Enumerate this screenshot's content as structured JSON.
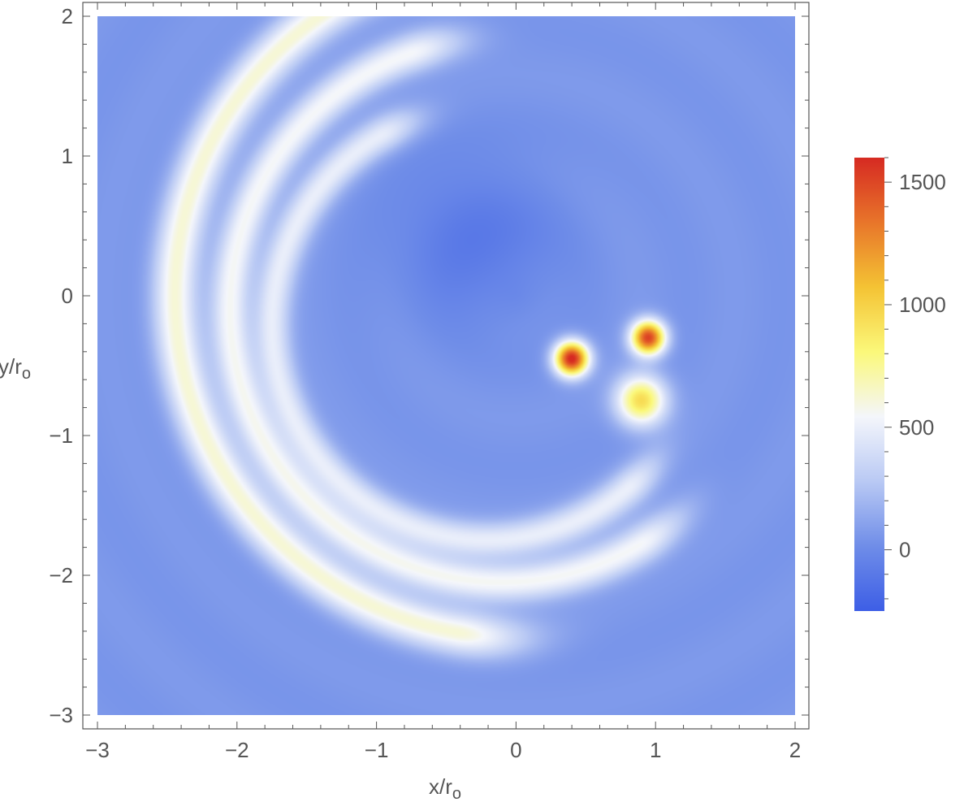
{
  "chart_data": {
    "type": "heatmap",
    "title": "",
    "xlabel": "x/r",
    "xlabel_sub": "o",
    "ylabel": "y/r",
    "ylabel_sub": "o",
    "xlim": [
      -3,
      2
    ],
    "ylim": [
      -3,
      2
    ],
    "x_ticks": [
      -3,
      -2,
      -1,
      0,
      1,
      2
    ],
    "y_ticks": [
      -3,
      -2,
      -1,
      0,
      1,
      2
    ],
    "x_tick_labels": [
      "−3",
      "−2",
      "−1",
      "0",
      "1",
      "2"
    ],
    "y_tick_labels": [
      "−3",
      "−2",
      "−1",
      "0",
      "1",
      "2"
    ],
    "colorbar": {
      "min": -250,
      "max": 1600,
      "ticks": [
        0,
        500,
        1000,
        1500
      ],
      "tick_labels": [
        "0",
        "500",
        "1000",
        "1500"
      ],
      "colors": [
        "#3d5ee6",
        "#6f8de8",
        "#b9c9f4",
        "#f4f6fb",
        "#fbf87a",
        "#f4c334",
        "#e8752a",
        "#d62a22"
      ]
    },
    "background_level": 60,
    "features": [
      {
        "name": "outer-arc",
        "center": [
          0,
          0
        ],
        "radius": 2.45,
        "from_deg": 100,
        "to_deg": 260,
        "peak": 560,
        "width": 0.16
      },
      {
        "name": "middle-arc",
        "center": [
          -0.1,
          -0.1
        ],
        "radius": 1.95,
        "from_deg": 110,
        "to_deg": 300,
        "peak": 500,
        "width": 0.14
      },
      {
        "name": "inner-arc",
        "center": [
          -0.2,
          -0.2
        ],
        "radius": 1.55,
        "from_deg": 120,
        "to_deg": 310,
        "peak": 430,
        "width": 0.13
      },
      {
        "name": "hot-spot-left",
        "x": 0.4,
        "y": -0.45,
        "peak": 1580,
        "width": 0.12
      },
      {
        "name": "hot-spot-right",
        "x": 0.95,
        "y": -0.3,
        "peak": 1450,
        "width": 0.12
      },
      {
        "name": "hot-tail",
        "x": 0.9,
        "y": -0.75,
        "peak": 900,
        "width": 0.18
      },
      {
        "name": "dark-core",
        "x": -0.3,
        "y": 0.4,
        "peak": -150,
        "width": 0.6
      }
    ]
  }
}
